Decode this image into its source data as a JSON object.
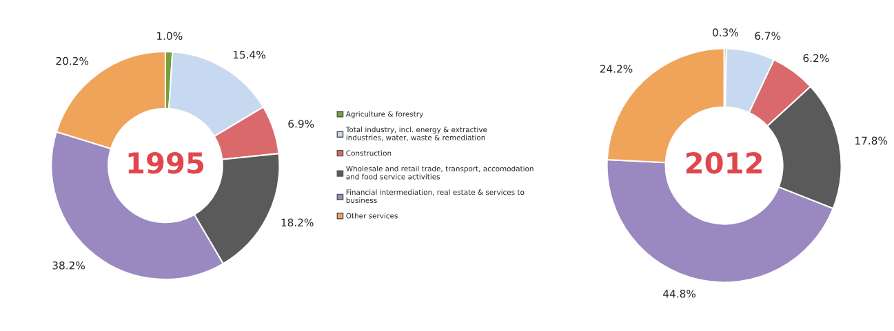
{
  "chart_data": [
    {
      "type": "donut",
      "title": "1995",
      "categories": [
        "Agriculture & forestry",
        "Total industry, incl. energy & extractive industries, water, waste & remediation",
        "Construction",
        "Wholesale and retail trade, transport, accomodation and food service activities",
        "Financial intermediation, real estate & services to business",
        "Other services"
      ],
      "values": [
        1.0,
        15.4,
        6.9,
        18.2,
        38.2,
        20.2
      ],
      "value_labels": [
        "1.0%",
        "15.4%",
        "6.9%",
        "18.2%",
        "38.2%",
        "20.2%"
      ],
      "colors": [
        "#77a03a",
        "#c6d9f0",
        "#d9696b",
        "#5a5a5a",
        "#9a88c0",
        "#f0a45a"
      ],
      "legend": "right"
    },
    {
      "type": "donut",
      "title": "2012",
      "values": [
        0.3,
        6.7,
        6.2,
        17.8,
        44.8,
        24.2
      ],
      "value_labels": [
        "0.3%",
        "6.7%",
        "6.2%",
        "17.8%",
        "44.8%",
        "24.2%"
      ],
      "colors": [
        "#77a03a",
        "#c6d9f0",
        "#d9696b",
        "#5a5a5a",
        "#9a88c0",
        "#f0a45a"
      ],
      "legend": false
    }
  ]
}
